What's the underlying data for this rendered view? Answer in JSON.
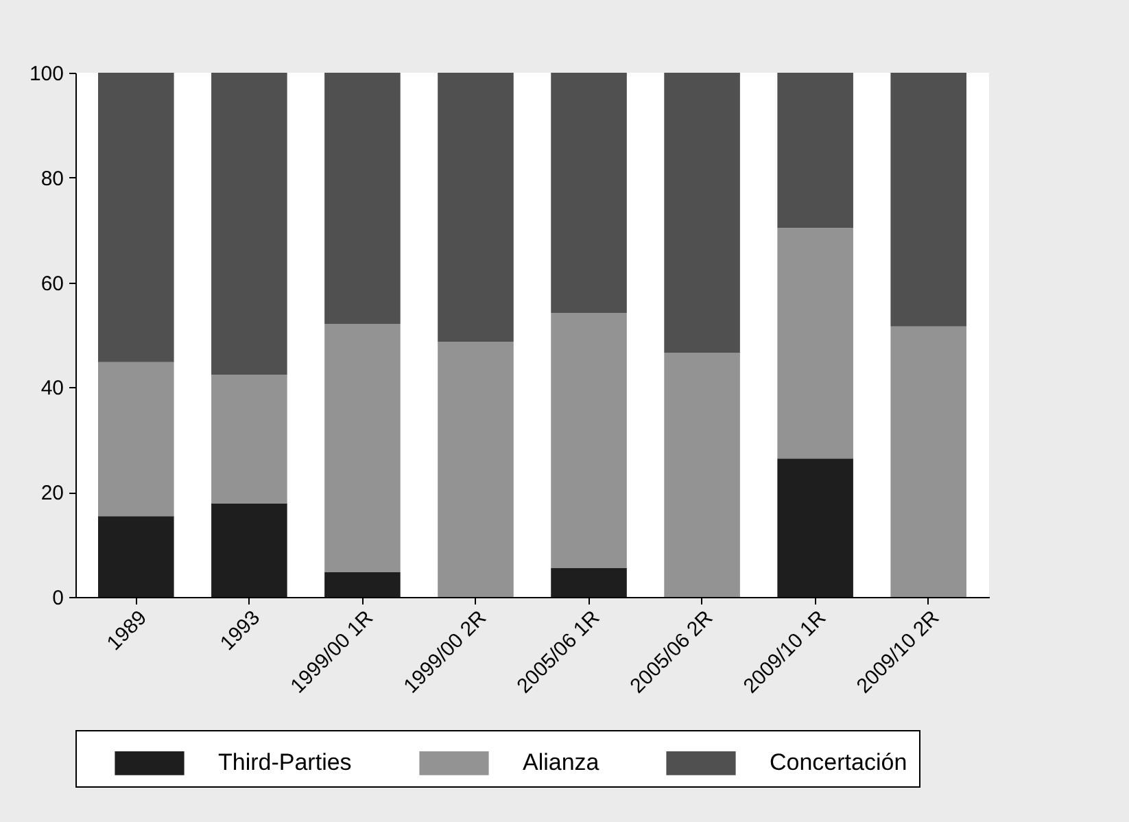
{
  "chart_data": {
    "type": "bar",
    "stacked": true,
    "categories": [
      "1989",
      "1993",
      "1999/00 1R",
      "1999/00 2R",
      "2005/06 1R",
      "2005/06 2R",
      "2009/10 1R",
      "2009/10 2R"
    ],
    "series": [
      {
        "name": "Third-Parties",
        "color": "#1e1e1e",
        "values": [
          15.4,
          17.8,
          4.7,
          0,
          5.5,
          0,
          26.4,
          0
        ]
      },
      {
        "name": "Alianza",
        "color": "#939393",
        "values": [
          29.4,
          24.6,
          47.4,
          48.7,
          48.7,
          46.6,
          44.0,
          51.6
        ]
      },
      {
        "name": "Concertación",
        "color": "#505050",
        "values": [
          55.2,
          57.6,
          47.9,
          51.3,
          45.8,
          53.4,
          29.6,
          48.4
        ]
      }
    ],
    "ylim": [
      0,
      100
    ],
    "yticks": [
      0,
      20,
      40,
      60,
      80,
      100
    ],
    "grid": false,
    "legend": "bottom"
  }
}
